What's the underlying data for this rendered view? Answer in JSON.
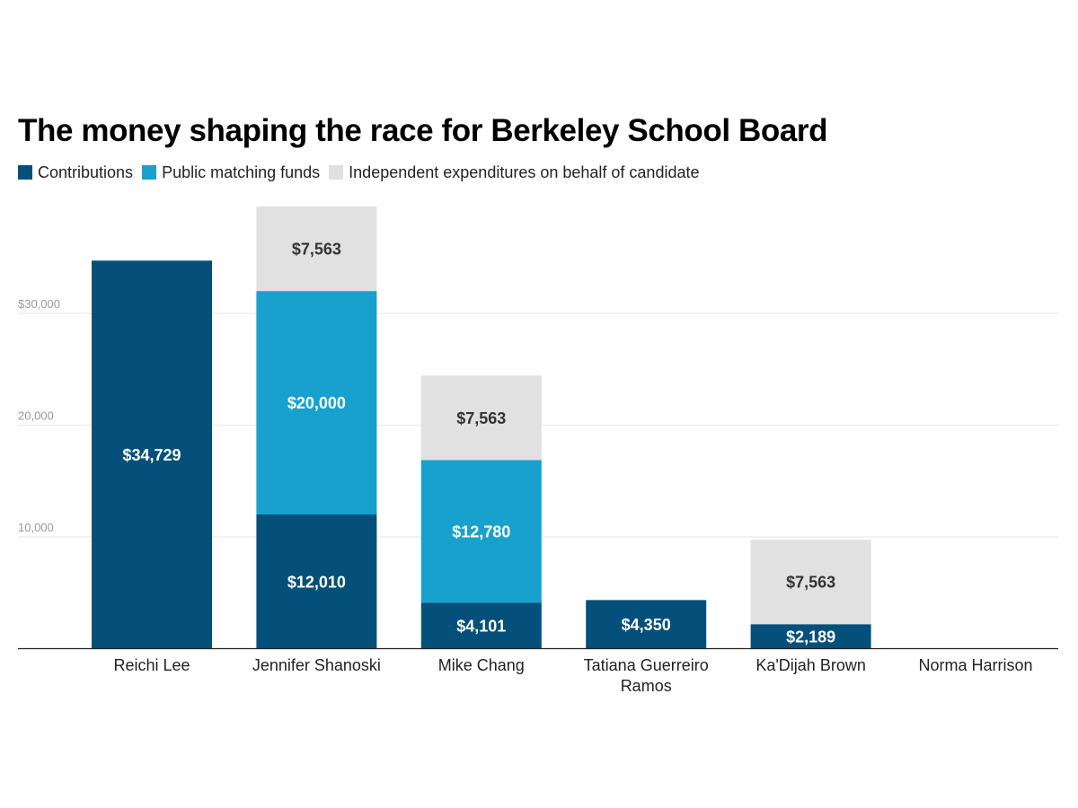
{
  "chart_data": {
    "type": "bar",
    "stacked": true,
    "title": "The money shaping the race for Berkeley School Board",
    "categories": [
      [
        "Reichi Lee"
      ],
      [
        "Jennifer Shanoski"
      ],
      [
        "Mike Chang"
      ],
      [
        "Tatiana Guerreiro",
        "Ramos"
      ],
      [
        "Ka'Dijah Brown"
      ],
      [
        "Norma Harrison"
      ]
    ],
    "series": [
      {
        "name": "Contributions",
        "color": "#04507a",
        "values": [
          34729,
          12010,
          4101,
          4350,
          2189,
          0
        ],
        "labels": [
          "$34,729",
          "$12,010",
          "$4,101",
          "$4,350",
          "$2,189",
          ""
        ],
        "label_color": "#ffffff"
      },
      {
        "name": "Public matching funds",
        "color": "#18a1cd",
        "values": [
          0,
          20000,
          12780,
          0,
          0,
          0
        ],
        "labels": [
          "",
          "$20,000",
          "$12,780",
          "",
          "",
          ""
        ],
        "label_color": "#ffffff"
      },
      {
        "name": "Independent expenditures on behalf of candidate",
        "color": "#e1e1e1",
        "values": [
          0,
          7563,
          7563,
          0,
          7563,
          0
        ],
        "labels": [
          "",
          "$7,563",
          "$7,563",
          "",
          "$7,563",
          ""
        ],
        "label_color": "#333333"
      }
    ],
    "ylim": [
      0,
      40000
    ],
    "yticks": [
      {
        "value": 10000,
        "label": "10,000"
      },
      {
        "value": 20000,
        "label": "20,000"
      },
      {
        "value": 30000,
        "label": "$30,000"
      }
    ],
    "grid": true,
    "legend": "top-left",
    "xlabel": "",
    "ylabel": ""
  }
}
